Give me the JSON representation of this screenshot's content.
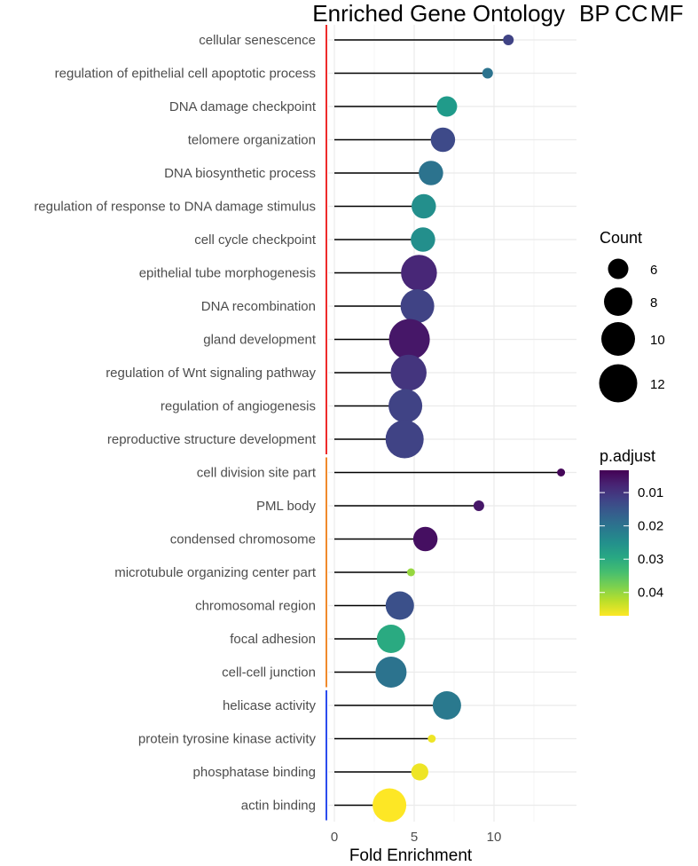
{
  "chart_data": {
    "type": "scatter",
    "subtype": "lollipop",
    "title": "Enriched Gene Ontology",
    "title_tags": [
      {
        "label": "BP",
        "color": "#ff0000"
      },
      {
        "label": "CC",
        "color": "#ff6a00"
      },
      {
        "label": "MF",
        "color": "#0000ff"
      }
    ],
    "xlabel": "Fold Enrichment",
    "xlim": [
      -0.5,
      14.5
    ],
    "xticks": [
      0,
      5,
      10
    ],
    "grid": true,
    "groups": [
      {
        "name": "BP",
        "color": "#ee2b2b",
        "rows": 13
      },
      {
        "name": "CC",
        "color": "#f08a2c",
        "rows": 7
      },
      {
        "name": "MF",
        "color": "#2b4cee",
        "rows": 4
      }
    ],
    "terms": [
      {
        "term": "cellular senescence",
        "fold": 10.9,
        "count": 3,
        "padj": 0.012
      },
      {
        "term": "regulation of epithelial cell apoptotic process",
        "fold": 9.6,
        "count": 3,
        "padj": 0.02
      },
      {
        "term": "DNA damage checkpoint",
        "fold": 7.05,
        "count": 6,
        "padj": 0.027
      },
      {
        "term": "telomere organization",
        "fold": 6.8,
        "count": 7,
        "padj": 0.013
      },
      {
        "term": "DNA biosynthetic process",
        "fold": 6.05,
        "count": 7,
        "padj": 0.02
      },
      {
        "term": "regulation of response to DNA damage stimulus",
        "fold": 5.6,
        "count": 7,
        "padj": 0.025
      },
      {
        "term": "cell cycle checkpoint",
        "fold": 5.55,
        "count": 7,
        "padj": 0.025
      },
      {
        "term": "epithelial tube morphogenesis",
        "fold": 5.3,
        "count": 11,
        "padj": 0.008
      },
      {
        "term": "DNA recombination",
        "fold": 5.2,
        "count": 10,
        "padj": 0.012
      },
      {
        "term": "gland development",
        "fold": 4.7,
        "count": 13,
        "padj": 0.006
      },
      {
        "term": "regulation of Wnt signaling pathway",
        "fold": 4.65,
        "count": 11,
        "padj": 0.01
      },
      {
        "term": "regulation of angiogenesis",
        "fold": 4.45,
        "count": 10,
        "padj": 0.012
      },
      {
        "term": "reproductive structure development",
        "fold": 4.4,
        "count": 12,
        "padj": 0.012
      },
      {
        "term": "cell division site part",
        "fold": 14.2,
        "count": 2,
        "padj": 0.004
      },
      {
        "term": "PML body",
        "fold": 9.05,
        "count": 3,
        "padj": 0.006
      },
      {
        "term": "condensed chromosome",
        "fold": 5.7,
        "count": 7,
        "padj": 0.005
      },
      {
        "term": "microtubule organizing center part",
        "fold": 4.8,
        "count": 2,
        "padj": 0.04
      },
      {
        "term": "chromosomal region",
        "fold": 4.1,
        "count": 8,
        "padj": 0.014
      },
      {
        "term": "focal adhesion",
        "fold": 3.55,
        "count": 8,
        "padj": 0.03
      },
      {
        "term": "cell-cell junction",
        "fold": 3.55,
        "count": 9,
        "padj": 0.02
      },
      {
        "term": "helicase activity",
        "fold": 7.05,
        "count": 8,
        "padj": 0.021
      },
      {
        "term": "protein tyrosine kinase activity",
        "fold": 6.1,
        "count": 2,
        "padj": 0.046
      },
      {
        "term": "phosphatase binding",
        "fold": 5.35,
        "count": 5,
        "padj": 0.046
      },
      {
        "term": "actin binding",
        "fold": 3.45,
        "count": 10,
        "padj": 0.047
      }
    ],
    "size_legend": {
      "title": "Count",
      "values": [
        6,
        8,
        10,
        12
      ]
    },
    "color_legend": {
      "title": "p.adjust",
      "ticks": [
        0.01,
        0.02,
        0.03,
        0.04
      ],
      "range": [
        0.0033,
        0.047
      ],
      "labels": [
        "0.01",
        "0.02",
        "0.03",
        "0.04"
      ]
    }
  }
}
